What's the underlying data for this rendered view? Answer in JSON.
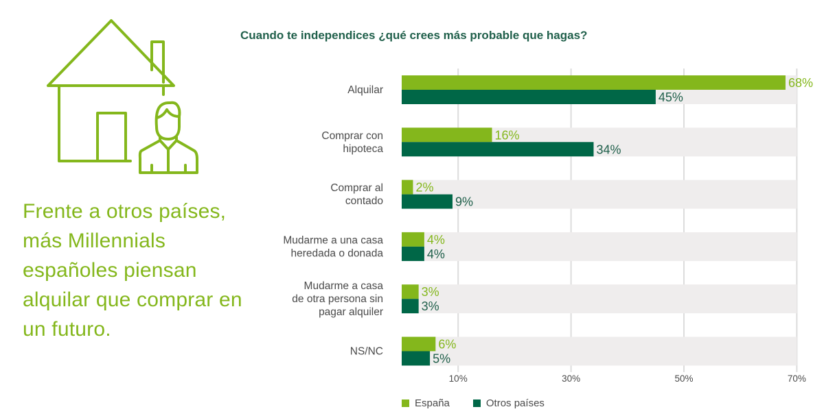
{
  "lead_text": "Frente a otros países, más Millennials españoles piensan alquilar que comprar en un futuro.",
  "icon": "house-with-person-icon",
  "colors": {
    "espana": "#84b71c",
    "otros": "#006747",
    "band": "#efeded",
    "title": "#1f5f4a"
  },
  "chart_data": {
    "type": "bar",
    "orientation": "horizontal",
    "title": "Cuando te independices ¿qué crees más probable que hagas?",
    "categories": [
      [
        "Alquilar"
      ],
      [
        "Comprar con",
        "hipoteca"
      ],
      [
        "Comprar al",
        "contado"
      ],
      [
        "Mudarme a una casa",
        "heredada o donada"
      ],
      [
        "Mudarme a casa",
        "de otra persona sin",
        "pagar alquiler"
      ],
      [
        "NS/NC"
      ]
    ],
    "series": [
      {
        "name": "España",
        "values": [
          68,
          16,
          2,
          4,
          3,
          6
        ],
        "labels": [
          "68%",
          "16%",
          "2%",
          "4%",
          "3%",
          "6%"
        ]
      },
      {
        "name": "Otros países",
        "values": [
          45,
          34,
          9,
          4,
          3,
          5
        ],
        "labels": [
          "45%",
          "34%",
          "9%",
          "4%",
          "3%",
          "5%"
        ]
      }
    ],
    "xlim": [
      0,
      70
    ],
    "xticks": [
      10,
      30,
      50,
      70
    ],
    "xtick_labels": [
      "10%",
      "30%",
      "50%",
      "70%"
    ],
    "grid": true,
    "legend_position": "bottom-left"
  }
}
